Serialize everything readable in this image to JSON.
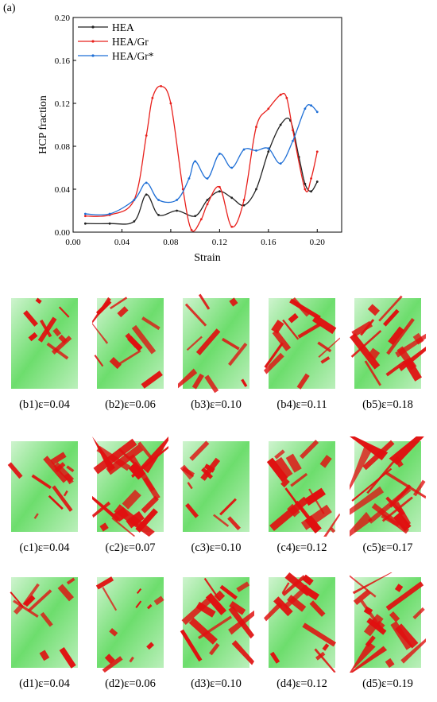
{
  "panel_label": "(a)",
  "chart_data": {
    "type": "line",
    "xlabel": "Strain",
    "ylabel": "HCP fraction",
    "xlim": [
      0.0,
      0.22
    ],
    "ylim": [
      0.0,
      0.2
    ],
    "xticks": [
      "0.00",
      "0.04",
      "0.08",
      "0.12",
      "0.16",
      "0.20"
    ],
    "yticks": [
      "0.00",
      "0.04",
      "0.08",
      "0.12",
      "0.16",
      "0.20"
    ],
    "xtick_values": [
      0.0,
      0.04,
      0.08,
      0.12,
      0.16,
      0.2
    ],
    "ytick_values": [
      0.0,
      0.04,
      0.08,
      0.12,
      0.16,
      0.2
    ],
    "grid": false,
    "legend_position": "top-left",
    "series": [
      {
        "name": "HEA",
        "color": "#222222",
        "x": [
          0.01,
          0.03,
          0.05,
          0.06,
          0.07,
          0.085,
          0.1,
          0.11,
          0.12,
          0.13,
          0.14,
          0.15,
          0.16,
          0.17,
          0.178,
          0.185,
          0.19,
          0.195,
          0.2
        ],
        "y": [
          0.008,
          0.008,
          0.01,
          0.035,
          0.016,
          0.02,
          0.015,
          0.03,
          0.038,
          0.032,
          0.025,
          0.04,
          0.075,
          0.1,
          0.104,
          0.07,
          0.045,
          0.038,
          0.047
        ]
      },
      {
        "name": "HEA/Gr",
        "color": "#e8201c",
        "x": [
          0.01,
          0.03,
          0.05,
          0.06,
          0.065,
          0.072,
          0.08,
          0.09,
          0.097,
          0.105,
          0.11,
          0.12,
          0.13,
          0.14,
          0.15,
          0.16,
          0.17,
          0.175,
          0.18,
          0.19,
          0.195,
          0.2
        ],
        "y": [
          0.015,
          0.016,
          0.03,
          0.09,
          0.125,
          0.136,
          0.12,
          0.04,
          0.002,
          0.012,
          0.026,
          0.042,
          0.005,
          0.03,
          0.098,
          0.115,
          0.128,
          0.125,
          0.095,
          0.04,
          0.05,
          0.075
        ]
      },
      {
        "name": "HEA/Gr*",
        "color": "#1f6fd6",
        "x": [
          0.01,
          0.03,
          0.05,
          0.06,
          0.07,
          0.085,
          0.095,
          0.1,
          0.11,
          0.12,
          0.13,
          0.14,
          0.15,
          0.16,
          0.17,
          0.18,
          0.19,
          0.195,
          0.2
        ],
        "y": [
          0.017,
          0.017,
          0.03,
          0.046,
          0.03,
          0.03,
          0.05,
          0.066,
          0.05,
          0.073,
          0.06,
          0.077,
          0.076,
          0.078,
          0.064,
          0.085,
          0.115,
          0.118,
          0.112
        ]
      }
    ]
  },
  "snapshot_rows": [
    {
      "row": "b",
      "captions": [
        "(b1)ε=0.04",
        "(b2)ε=0.06",
        "(b3)ε=0.10",
        "(b4)ε=0.11",
        "(b5)ε=0.18"
      ],
      "hcp_fraction_shown": [
        0.2,
        0.4,
        0.3,
        0.45,
        0.6
      ]
    },
    {
      "row": "c",
      "captions": [
        "(c1)ε=0.04",
        "(c2)ε=0.07",
        "(c3)ε=0.10",
        "(c4)ε=0.12",
        "(c5)ε=0.17"
      ],
      "hcp_fraction_shown": [
        0.35,
        0.9,
        0.25,
        0.65,
        0.8
      ]
    },
    {
      "row": "d",
      "captions": [
        "(d1)ε=0.04",
        "(d2)ε=0.06",
        "(d3)ε=0.10",
        "(d4)ε=0.12",
        "(d5)ε=0.19"
      ],
      "hcp_fraction_shown": [
        0.3,
        0.3,
        0.5,
        0.5,
        0.7
      ]
    }
  ],
  "colors": {
    "matrix": "#3cd23c",
    "hcp": "#e01010"
  }
}
